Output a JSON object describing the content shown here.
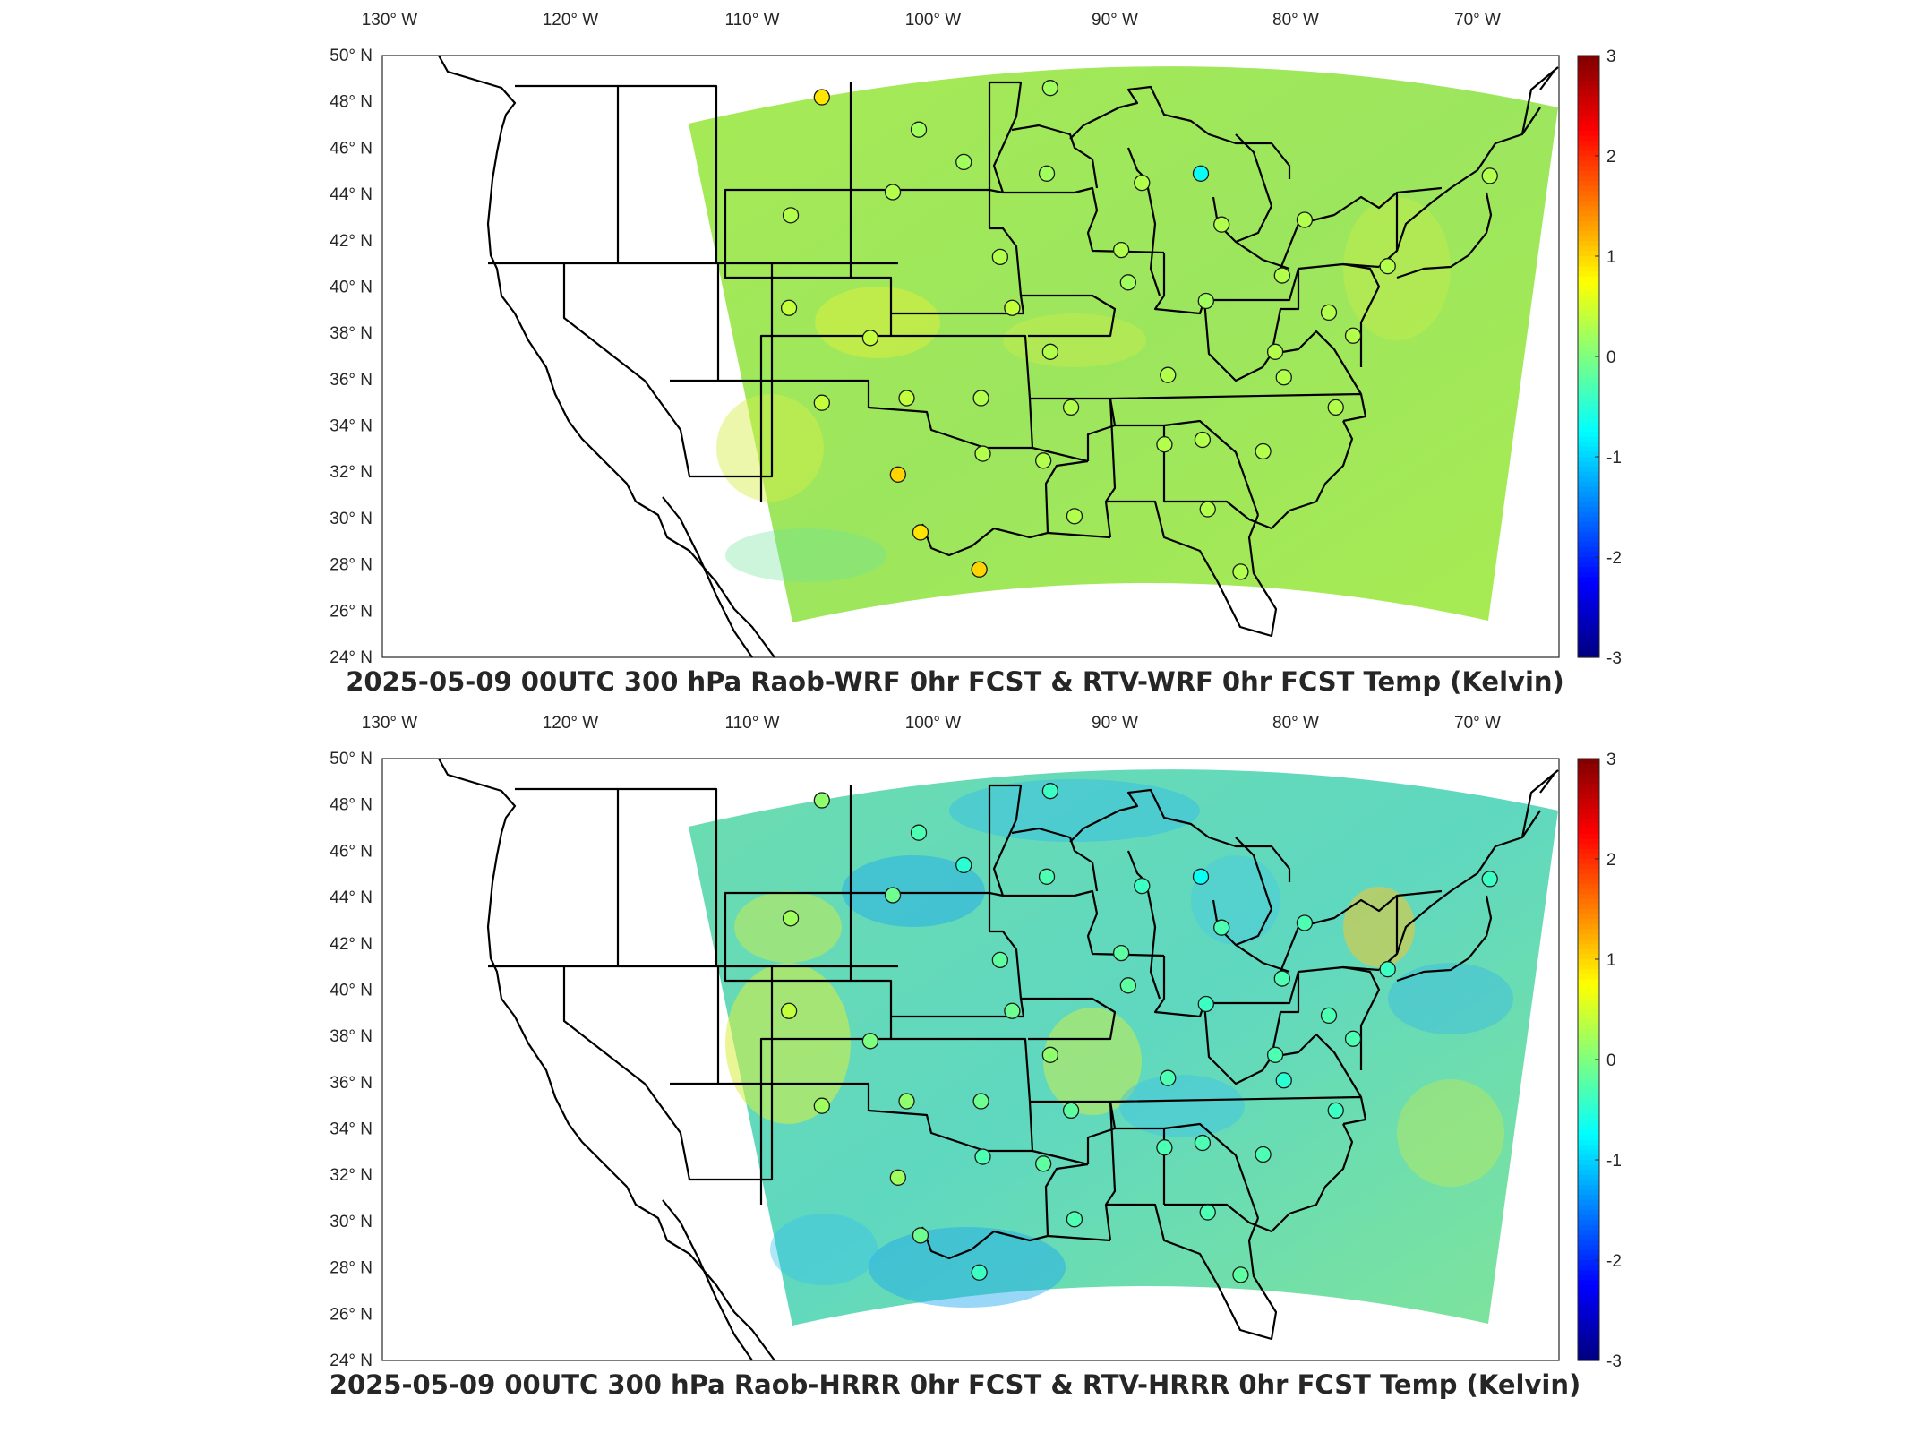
{
  "colors": {
    "field_base": "#9fe85a",
    "field_cool": "#34d6ec",
    "field_warm": "#e0ec3a",
    "station_outline": "#1a1a1a",
    "colormap": [
      "#00007f",
      "#0000ff",
      "#007fff",
      "#00ffff",
      "#7fff7f",
      "#ffff00",
      "#ff7f00",
      "#ff0000",
      "#7f0000"
    ]
  },
  "maps": [
    {
      "title": "2025-05-09 00UTC 300 hPa Raob-WRF 0hr FCST & RTV-WRF 0hr FCST Temp (Kelvin)",
      "lon_labels": [
        "130° W",
        "120° W",
        "110° W",
        "100° W",
        "90° W",
        "80° W",
        "70° W"
      ],
      "lat_labels": [
        "50° N",
        "48° N",
        "46° N",
        "44° N",
        "42° N",
        "40° N",
        "38° N",
        "36° N",
        "34° N",
        "32° N",
        "30° N",
        "28° N",
        "26° N",
        "24° N"
      ],
      "colorbar_ticks": [
        "3",
        "2",
        "1",
        "0",
        "-1",
        "-2",
        "-3"
      ],
      "colorbar_range": [
        -3,
        3
      ],
      "field_variant": "wrf",
      "stations_note": "Raob stations shown as circles, colored by difference value"
    },
    {
      "title": "2025-05-09 00UTC 300 hPa Raob-HRRR 0hr FCST & RTV-HRRR 0hr FCST Temp (Kelvin)",
      "lon_labels": [
        "130° W",
        "120° W",
        "110° W",
        "100° W",
        "90° W",
        "80° W",
        "70° W"
      ],
      "lat_labels": [
        "50° N",
        "48° N",
        "46° N",
        "44° N",
        "42° N",
        "40° N",
        "38° N",
        "36° N",
        "34° N",
        "32° N",
        "30° N",
        "28° N",
        "26° N",
        "24° N"
      ],
      "colorbar_ticks": [
        "3",
        "2",
        "1",
        "0",
        "-1",
        "-2",
        "-3"
      ],
      "colorbar_range": [
        -3,
        3
      ],
      "field_variant": "hrrr"
    }
  ],
  "stations": [
    {
      "lon": -106.6,
      "lat": 48.2,
      "wrf": 0.9,
      "hrrr": 0.1
    },
    {
      "lon": -93.4,
      "lat": 48.6,
      "wrf": 0.2,
      "hrrr": -0.4
    },
    {
      "lon": -101.0,
      "lat": 46.8,
      "wrf": 0.2,
      "hrrr": -0.3
    },
    {
      "lon": -98.4,
      "lat": 45.4,
      "wrf": 0.2,
      "hrrr": -0.5
    },
    {
      "lon": -93.6,
      "lat": 44.9,
      "wrf": 0.2,
      "hrrr": -0.3
    },
    {
      "lon": -102.5,
      "lat": 44.1,
      "wrf": 0.3,
      "hrrr": -0.1
    },
    {
      "lon": -108.4,
      "lat": 43.1,
      "wrf": 0.3,
      "hrrr": 0.2
    },
    {
      "lon": -88.1,
      "lat": 44.5,
      "wrf": 0.3,
      "hrrr": -0.4
    },
    {
      "lon": -84.7,
      "lat": 44.9,
      "wrf": -0.7,
      "hrrr": -0.7
    },
    {
      "lon": -83.5,
      "lat": 42.7,
      "wrf": 0.3,
      "hrrr": -0.3
    },
    {
      "lon": -78.7,
      "lat": 42.9,
      "wrf": 0.3,
      "hrrr": -0.3
    },
    {
      "lon": -68.0,
      "lat": 44.8,
      "wrf": 0.3,
      "hrrr": -0.4
    },
    {
      "lon": -73.9,
      "lat": 40.9,
      "wrf": 0.3,
      "hrrr": -0.4
    },
    {
      "lon": -89.3,
      "lat": 41.6,
      "wrf": 0.3,
      "hrrr": -0.2
    },
    {
      "lon": -96.3,
      "lat": 41.3,
      "wrf": 0.3,
      "hrrr": -0.2
    },
    {
      "lon": -88.9,
      "lat": 40.2,
      "wrf": 0.2,
      "hrrr": -0.2
    },
    {
      "lon": -84.4,
      "lat": 39.4,
      "wrf": 0.2,
      "hrrr": -0.4
    },
    {
      "lon": -80.0,
      "lat": 40.5,
      "wrf": 0.3,
      "hrrr": -0.3
    },
    {
      "lon": -77.3,
      "lat": 38.9,
      "wrf": 0.3,
      "hrrr": -0.3
    },
    {
      "lon": -75.9,
      "lat": 37.9,
      "wrf": 0.3,
      "hrrr": -0.3
    },
    {
      "lon": -108.5,
      "lat": 39.1,
      "wrf": 0.4,
      "hrrr": 0.4
    },
    {
      "lon": -103.8,
      "lat": 37.8,
      "wrf": 0.4,
      "hrrr": 0.0
    },
    {
      "lon": -95.6,
      "lat": 39.1,
      "wrf": 0.4,
      "hrrr": -0.1
    },
    {
      "lon": -93.4,
      "lat": 37.2,
      "wrf": 0.3,
      "hrrr": 0.1
    },
    {
      "lon": -86.6,
      "lat": 36.2,
      "wrf": 0.3,
      "hrrr": -0.3
    },
    {
      "lon": -80.4,
      "lat": 37.2,
      "wrf": 0.3,
      "hrrr": -0.3
    },
    {
      "lon": -79.9,
      "lat": 36.1,
      "wrf": 0.3,
      "hrrr": -0.5
    },
    {
      "lon": -76.9,
      "lat": 34.8,
      "wrf": 0.3,
      "hrrr": -0.4
    },
    {
      "lon": -106.6,
      "lat": 35.0,
      "wrf": 0.4,
      "hrrr": 0.2
    },
    {
      "lon": -101.7,
      "lat": 35.2,
      "wrf": 0.4,
      "hrrr": 0.1
    },
    {
      "lon": -97.4,
      "lat": 35.2,
      "wrf": 0.3,
      "hrrr": -0.1
    },
    {
      "lon": -92.2,
      "lat": 34.8,
      "wrf": 0.3,
      "hrrr": -0.2
    },
    {
      "lon": -86.8,
      "lat": 33.2,
      "wrf": 0.3,
      "hrrr": -0.3
    },
    {
      "lon": -84.6,
      "lat": 33.4,
      "wrf": 0.3,
      "hrrr": -0.3
    },
    {
      "lon": -81.1,
      "lat": 32.9,
      "wrf": 0.3,
      "hrrr": -0.3
    },
    {
      "lon": -97.3,
      "lat": 32.8,
      "wrf": 0.3,
      "hrrr": -0.3
    },
    {
      "lon": -102.2,
      "lat": 31.9,
      "wrf": 1.0,
      "hrrr": 0.2
    },
    {
      "lon": -93.8,
      "lat": 32.5,
      "wrf": 0.3,
      "hrrr": -0.2
    },
    {
      "lon": -92.0,
      "lat": 30.1,
      "wrf": 0.3,
      "hrrr": -0.3
    },
    {
      "lon": -84.3,
      "lat": 30.4,
      "wrf": 0.3,
      "hrrr": -0.3
    },
    {
      "lon": -100.9,
      "lat": 29.4,
      "wrf": 0.9,
      "hrrr": -0.1
    },
    {
      "lon": -97.5,
      "lat": 27.8,
      "wrf": 1.0,
      "hrrr": -0.4
    },
    {
      "lon": -82.4,
      "lat": 27.7,
      "wrf": 0.3,
      "hrrr": -0.2
    }
  ]
}
